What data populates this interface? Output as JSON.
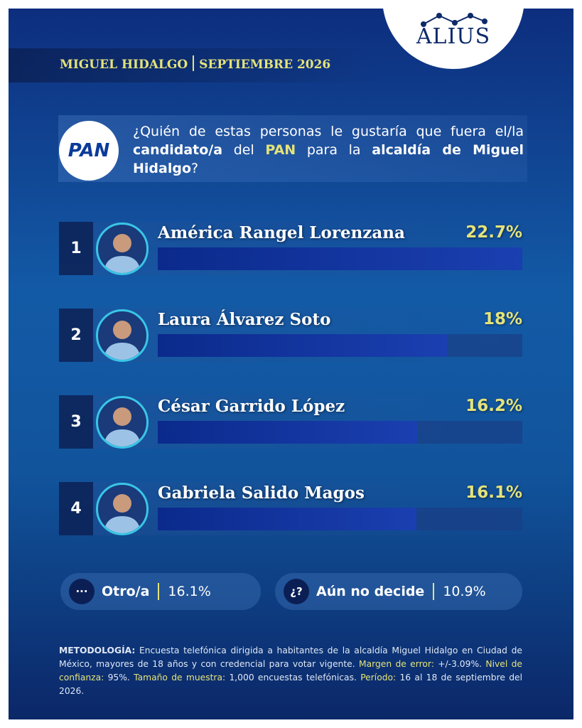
{
  "header": {
    "place": "MIGUEL HIDALGO",
    "date": "SEPTIEMBRE 2026"
  },
  "logo": {
    "brand": "ALIUS",
    "party": "PAN"
  },
  "question": [
    {
      "text": "¿Quién de estas personas le gustaría que fuera el/la ",
      "style": "normal"
    },
    {
      "text": "candidato/a",
      "style": "bold"
    },
    {
      "text": " del ",
      "style": "normal"
    },
    {
      "text": "PAN",
      "style": "highlight"
    },
    {
      "text": " para la ",
      "style": "normal"
    },
    {
      "text": "alcaldía de Miguel Hidalgo",
      "style": "bold"
    },
    {
      "text": "?",
      "style": "normal"
    }
  ],
  "chart_data": {
    "type": "bar",
    "orientation": "horizontal",
    "ranks": [
      1,
      2,
      3,
      4
    ],
    "categories": [
      "América Rangel Lorenzana",
      "Laura Álvarez Soto",
      "César Garrido López",
      "Gabriela Salido Magos"
    ],
    "values": [
      22.7,
      18,
      16.2,
      16.1
    ],
    "value_labels": [
      "22.7%",
      "18%",
      "16.2%",
      "16.1%"
    ],
    "xlim": [
      0,
      22.7
    ],
    "color": "#0b2a8c",
    "track_color": "#1a3f86"
  },
  "summary": [
    {
      "icon": "···",
      "label": "Otro/a",
      "value": "16.1%"
    },
    {
      "icon": "¿?",
      "label": "Aún no decide",
      "value": "10.9%"
    }
  ],
  "methodology": [
    {
      "text": "METODOLOGÍA:",
      "style": "label"
    },
    {
      "text": " Encuesta telefónica dirigida a habitantes de la alcaldía Miguel Hidalgo en Ciudad de México, mayores de 18 años y con credencial para votar vigente. ",
      "style": "normal"
    },
    {
      "text": "Margen de error:",
      "style": "highlight"
    },
    {
      "text": " +/-3.09%. ",
      "style": "normal"
    },
    {
      "text": "Nivel de confianza:",
      "style": "highlight"
    },
    {
      "text": " 95%. ",
      "style": "normal"
    },
    {
      "text": "Tamaño de muestra:",
      "style": "highlight"
    },
    {
      "text": " 1,000 encuestas telefónicas. ",
      "style": "normal"
    },
    {
      "text": "Período:",
      "style": "highlight"
    },
    {
      "text": " 16 al 18 de septiembre del 2026.",
      "style": "normal"
    }
  ]
}
